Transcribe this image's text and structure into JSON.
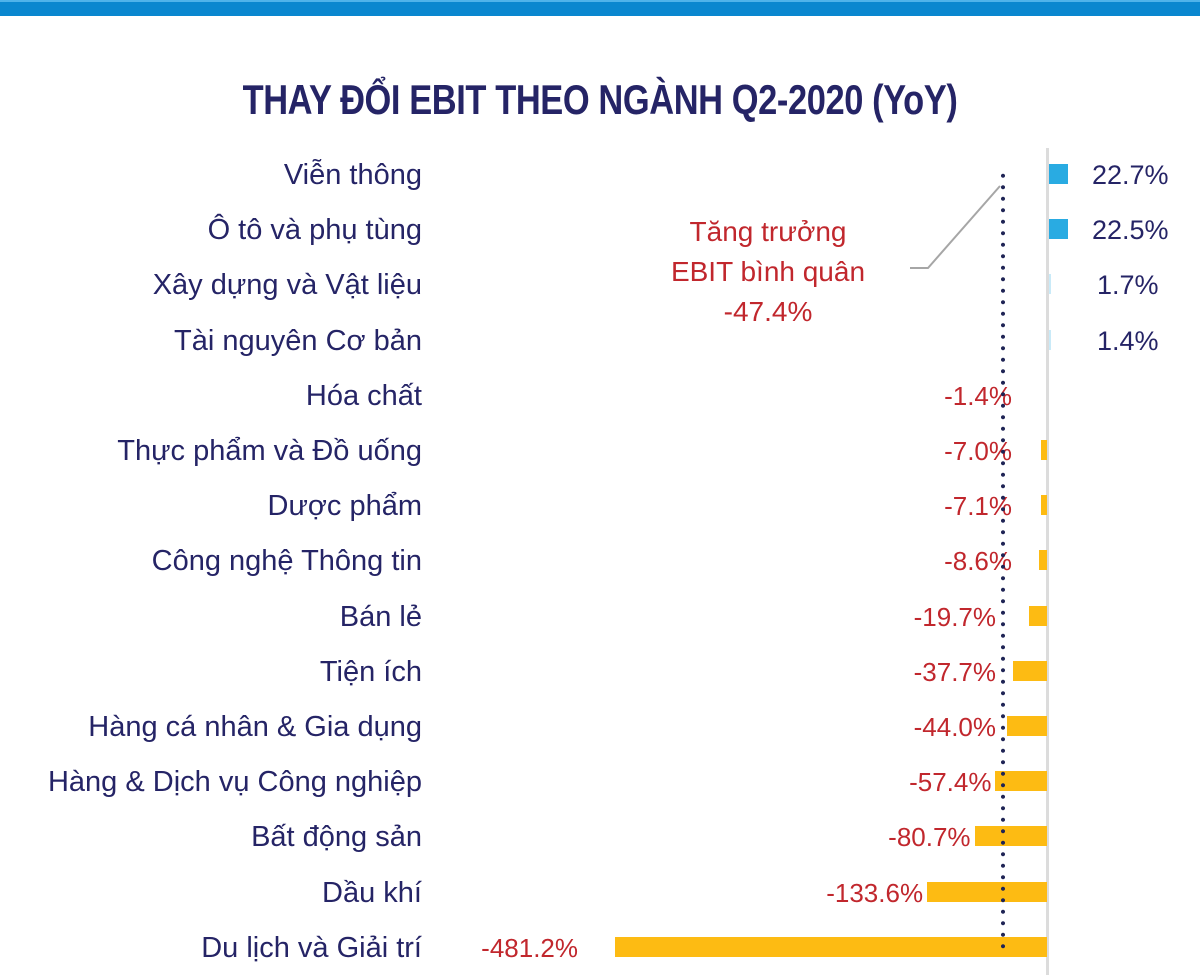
{
  "header": {
    "title": "THAY ĐỔI EBIT THEO NGÀNH Q2-2020 (YoY)",
    "bar_color": "#0a87cf"
  },
  "annotation": {
    "line1": "Tăng trưởng",
    "line2": "EBIT bình quân",
    "line3": "-47.4%",
    "color": "#c1272d"
  },
  "colors": {
    "positive": "#29abe2",
    "negative": "#fdbb13",
    "label_text": "#252466",
    "negative_text": "#c1272d",
    "average_line": "#1f2455"
  },
  "chart_data": {
    "type": "bar",
    "orientation": "horizontal",
    "title": "THAY ĐỔI EBIT THEO NGÀNH Q2-2020 (YoY)",
    "xlabel": "",
    "ylabel": "",
    "unit": "%",
    "grid": false,
    "legend": null,
    "categories": [
      "Viễn thông",
      "Ô tô và phụ tùng",
      "Xây dựng và Vật liệu",
      "Tài nguyên Cơ bản",
      "Hóa chất",
      "Thực phẩm và Đồ uống",
      "Dược phẩm",
      "Công nghệ Thông tin",
      "Bán lẻ",
      "Tiện ích",
      "Hàng cá nhân & Gia dụng",
      "Hàng & Dịch vụ Công nghiệp",
      "Bất động sản",
      "Dầu khí",
      "Du lịch và Giải trí"
    ],
    "values": [
      22.7,
      22.5,
      1.7,
      1.4,
      -1.4,
      -7.0,
      -7.1,
      -8.6,
      -19.7,
      -37.7,
      -44.0,
      -57.4,
      -80.7,
      -133.6,
      -481.2
    ],
    "value_labels": [
      "22.7%",
      "22.5%",
      "1.7%",
      "1.4%",
      "-1.4%",
      "-7.0%",
      "-7.1%",
      "-8.6%",
      "-19.7%",
      "-37.7%",
      "-44.0%",
      "-57.4%",
      "-80.7%",
      "-133.6%",
      "-481.2%"
    ],
    "reference_line": {
      "label": "Tăng trưởng EBIT bình quân",
      "value": -47.4,
      "style": "dotted"
    },
    "xlim": [
      -481.2,
      22.7
    ]
  }
}
